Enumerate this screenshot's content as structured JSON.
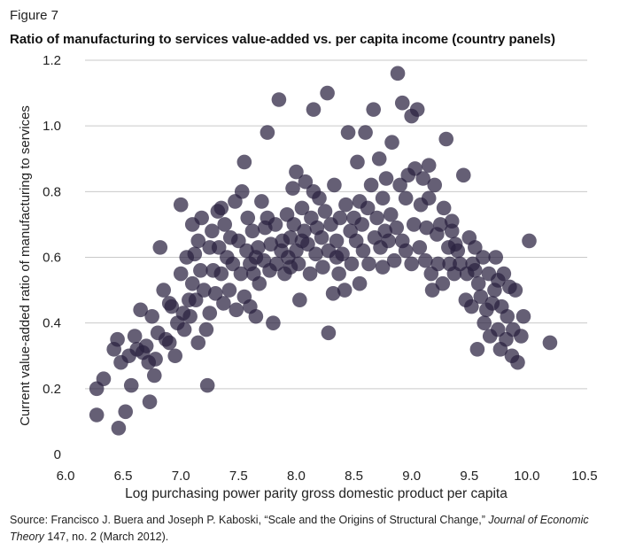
{
  "figure_label": "Figure 7",
  "source": {
    "prefix": "Source: Francisco J. Buera and Joseph P. Kaboski, “Scale and the Origins of Structural Change,” ",
    "journal": "Journal of Economic Theory",
    "suffix": " 147, no. 2 (March 2012)."
  },
  "colors": {
    "point": "#2a2140",
    "grid": "#c9c9c9",
    "axis_text": "#222222"
  },
  "chart_data": {
    "type": "scatter",
    "title": "Ratio of manufacturing to services value-added vs. per capita income (country panels)",
    "xlabel": "Log purchasing power parity gross domestic product per capita",
    "ylabel": "Current value-added ratio of manufacturing to services",
    "xlim": [
      6.0,
      10.5
    ],
    "ylim": [
      0,
      1.2
    ],
    "xticks": [
      6.0,
      6.5,
      7.0,
      7.5,
      8.0,
      8.5,
      9.0,
      9.5,
      10.0,
      10.5
    ],
    "xtick_labels": [
      "6.0",
      "6.5",
      "7.0",
      "7.5",
      "8.0",
      "8.5",
      "9.0",
      "9.5",
      "10.0",
      "10.5"
    ],
    "yticks": [
      0,
      0.2,
      0.4,
      0.6,
      0.8,
      1.0,
      1.2
    ],
    "ytick_labels": [
      "0",
      "0.2",
      "0.4",
      "0.6",
      "0.8",
      "1.0",
      "1.2"
    ],
    "grid": "horizontal",
    "series": [
      {
        "name": "Country panels",
        "points": [
          [
            6.27,
            0.12
          ],
          [
            6.27,
            0.2
          ],
          [
            6.33,
            0.23
          ],
          [
            6.42,
            0.32
          ],
          [
            6.45,
            0.35
          ],
          [
            6.46,
            0.08
          ],
          [
            6.48,
            0.28
          ],
          [
            6.52,
            0.13
          ],
          [
            6.55,
            0.3
          ],
          [
            6.57,
            0.21
          ],
          [
            6.6,
            0.36
          ],
          [
            6.62,
            0.32
          ],
          [
            6.65,
            0.44
          ],
          [
            6.67,
            0.31
          ],
          [
            6.7,
            0.33
          ],
          [
            6.72,
            0.28
          ],
          [
            6.73,
            0.16
          ],
          [
            6.75,
            0.42
          ],
          [
            6.77,
            0.24
          ],
          [
            6.78,
            0.29
          ],
          [
            6.8,
            0.37
          ],
          [
            6.82,
            0.63
          ],
          [
            6.85,
            0.5
          ],
          [
            6.87,
            0.35
          ],
          [
            6.9,
            0.34
          ],
          [
            6.92,
            0.45
          ],
          [
            6.95,
            0.3
          ],
          [
            6.97,
            0.4
          ],
          [
            7.0,
            0.76
          ],
          [
            7.0,
            0.55
          ],
          [
            7.02,
            0.43
          ],
          [
            7.03,
            0.38
          ],
          [
            7.05,
            0.6
          ],
          [
            7.07,
            0.47
          ],
          [
            7.08,
            0.42
          ],
          [
            7.1,
            0.7
          ],
          [
            7.1,
            0.52
          ],
          [
            7.12,
            0.61
          ],
          [
            7.13,
            0.47
          ],
          [
            7.15,
            0.34
          ],
          [
            7.17,
            0.56
          ],
          [
            7.18,
            0.72
          ],
          [
            7.2,
            0.5
          ],
          [
            7.22,
            0.38
          ],
          [
            7.23,
            0.21
          ],
          [
            7.25,
            0.63
          ],
          [
            7.27,
            0.68
          ],
          [
            7.28,
            0.56
          ],
          [
            7.3,
            0.49
          ],
          [
            7.32,
            0.74
          ],
          [
            7.33,
            0.63
          ],
          [
            7.35,
            0.55
          ],
          [
            7.37,
            0.46
          ],
          [
            7.38,
            0.7
          ],
          [
            7.4,
            0.6
          ],
          [
            7.42,
            0.5
          ],
          [
            7.43,
            0.66
          ],
          [
            7.45,
            0.58
          ],
          [
            7.47,
            0.77
          ],
          [
            7.48,
            0.44
          ],
          [
            7.5,
            0.65
          ],
          [
            7.52,
            0.55
          ],
          [
            7.53,
            0.8
          ],
          [
            7.55,
            0.89
          ],
          [
            7.57,
            0.62
          ],
          [
            7.58,
            0.72
          ],
          [
            7.6,
            0.58
          ],
          [
            7.6,
            0.45
          ],
          [
            7.62,
            0.68
          ],
          [
            7.63,
            0.55
          ],
          [
            7.65,
            0.42
          ],
          [
            7.67,
            0.63
          ],
          [
            7.68,
            0.52
          ],
          [
            7.7,
            0.77
          ],
          [
            7.72,
            0.59
          ],
          [
            7.73,
            0.69
          ],
          [
            7.75,
            0.98
          ],
          [
            7.77,
            0.56
          ],
          [
            7.78,
            0.64
          ],
          [
            7.8,
            0.4
          ],
          [
            7.82,
            0.7
          ],
          [
            7.83,
            0.58
          ],
          [
            7.85,
            1.08
          ],
          [
            7.87,
            0.62
          ],
          [
            7.88,
            0.65
          ],
          [
            7.9,
            0.55
          ],
          [
            7.92,
            0.73
          ],
          [
            7.93,
            0.6
          ],
          [
            7.95,
            0.66
          ],
          [
            7.97,
            0.81
          ],
          [
            7.98,
            0.7
          ],
          [
            8.0,
            0.62
          ],
          [
            8.0,
            0.86
          ],
          [
            8.02,
            0.58
          ],
          [
            8.03,
            0.47
          ],
          [
            8.05,
            0.75
          ],
          [
            8.07,
            0.68
          ],
          [
            8.08,
            0.83
          ],
          [
            8.1,
            0.64
          ],
          [
            8.12,
            0.55
          ],
          [
            8.13,
            0.72
          ],
          [
            8.15,
            1.05
          ],
          [
            8.17,
            0.61
          ],
          [
            8.18,
            0.69
          ],
          [
            8.2,
            0.78
          ],
          [
            8.22,
            0.66
          ],
          [
            8.23,
            0.57
          ],
          [
            8.25,
            0.74
          ],
          [
            8.27,
            1.1
          ],
          [
            8.28,
            0.62
          ],
          [
            8.28,
            0.37
          ],
          [
            8.3,
            0.7
          ],
          [
            8.32,
            0.49
          ],
          [
            8.33,
            0.82
          ],
          [
            8.35,
            0.65
          ],
          [
            8.37,
            0.55
          ],
          [
            8.38,
            0.72
          ],
          [
            8.4,
            0.61
          ],
          [
            8.42,
            0.5
          ],
          [
            8.43,
            0.76
          ],
          [
            8.45,
            0.98
          ],
          [
            8.47,
            0.68
          ],
          [
            8.48,
            0.58
          ],
          [
            8.5,
            0.72
          ],
          [
            8.52,
            0.65
          ],
          [
            8.53,
            0.89
          ],
          [
            8.55,
            0.52
          ],
          [
            8.57,
            0.7
          ],
          [
            8.58,
            0.62
          ],
          [
            8.6,
            0.98
          ],
          [
            8.62,
            0.75
          ],
          [
            8.63,
            0.58
          ],
          [
            8.65,
            0.82
          ],
          [
            8.67,
            1.05
          ],
          [
            8.68,
            0.66
          ],
          [
            8.7,
            0.72
          ],
          [
            8.72,
            0.9
          ],
          [
            8.73,
            0.63
          ],
          [
            8.75,
            0.78
          ],
          [
            8.77,
            0.68
          ],
          [
            8.78,
            0.84
          ],
          [
            8.8,
            0.65
          ],
          [
            8.82,
            0.73
          ],
          [
            8.83,
            0.95
          ],
          [
            8.85,
            0.59
          ],
          [
            8.87,
            0.69
          ],
          [
            8.88,
            1.16
          ],
          [
            8.9,
            0.82
          ],
          [
            8.92,
            1.07
          ],
          [
            8.92,
            0.65
          ],
          [
            8.95,
            0.78
          ],
          [
            8.97,
            0.85
          ],
          [
            9.0,
            1.03
          ],
          [
            9.0,
            0.58
          ],
          [
            9.02,
            0.7
          ],
          [
            9.03,
            0.87
          ],
          [
            9.05,
            1.05
          ],
          [
            9.07,
            0.63
          ],
          [
            9.08,
            0.76
          ],
          [
            9.1,
            0.84
          ],
          [
            9.12,
            0.59
          ],
          [
            9.13,
            0.69
          ],
          [
            9.15,
            0.78
          ],
          [
            9.17,
            0.55
          ],
          [
            9.18,
            0.5
          ],
          [
            9.2,
            0.82
          ],
          [
            9.22,
            0.67
          ],
          [
            9.23,
            0.58
          ],
          [
            9.25,
            0.7
          ],
          [
            9.27,
            0.52
          ],
          [
            9.28,
            0.75
          ],
          [
            9.3,
            0.96
          ],
          [
            9.32,
            0.63
          ],
          [
            9.33,
            0.58
          ],
          [
            9.35,
            0.68
          ],
          [
            9.37,
            0.55
          ],
          [
            9.38,
            0.64
          ],
          [
            9.4,
            0.62
          ],
          [
            9.42,
            0.58
          ],
          [
            9.45,
            0.85
          ],
          [
            9.47,
            0.47
          ],
          [
            9.48,
            0.55
          ],
          [
            9.5,
            0.66
          ],
          [
            9.52,
            0.45
          ],
          [
            9.53,
            0.58
          ],
          [
            9.55,
            0.63
          ],
          [
            9.57,
            0.32
          ],
          [
            9.58,
            0.52
          ],
          [
            9.6,
            0.48
          ],
          [
            9.62,
            0.6
          ],
          [
            9.63,
            0.4
          ],
          [
            9.65,
            0.44
          ],
          [
            9.67,
            0.55
          ],
          [
            9.68,
            0.36
          ],
          [
            9.7,
            0.46
          ],
          [
            9.72,
            0.5
          ],
          [
            9.73,
            0.6
          ],
          [
            9.75,
            0.38
          ],
          [
            9.77,
            0.32
          ],
          [
            9.78,
            0.45
          ],
          [
            9.8,
            0.55
          ],
          [
            9.82,
            0.35
          ],
          [
            9.83,
            0.42
          ],
          [
            9.85,
            0.51
          ],
          [
            9.87,
            0.3
          ],
          [
            9.88,
            0.38
          ],
          [
            9.9,
            0.5
          ],
          [
            9.92,
            0.28
          ],
          [
            9.95,
            0.36
          ],
          [
            9.97,
            0.42
          ],
          [
            10.02,
            0.65
          ],
          [
            10.2,
            0.34
          ],
          [
            6.9,
            0.46
          ],
          [
            7.15,
            0.65
          ],
          [
            7.35,
            0.75
          ],
          [
            7.55,
            0.48
          ],
          [
            7.75,
            0.72
          ],
          [
            7.95,
            0.57
          ],
          [
            8.15,
            0.8
          ],
          [
            8.35,
            0.6
          ],
          [
            8.55,
            0.77
          ],
          [
            8.75,
            0.57
          ],
          [
            8.95,
            0.62
          ],
          [
            9.15,
            0.88
          ],
          [
            9.35,
            0.71
          ],
          [
            9.55,
            0.56
          ],
          [
            9.75,
            0.53
          ],
          [
            7.25,
            0.43
          ],
          [
            7.65,
            0.6
          ],
          [
            8.05,
            0.65
          ]
        ]
      }
    ]
  }
}
